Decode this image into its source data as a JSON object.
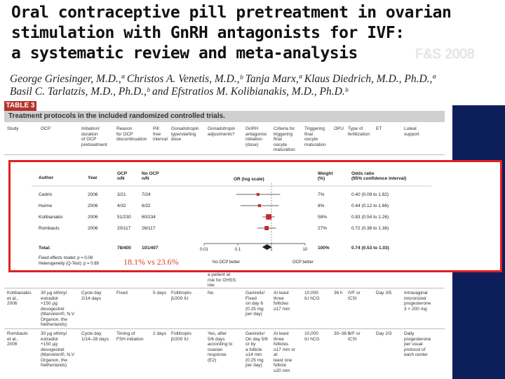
{
  "title_lines": [
    "Oral contraceptive pill pretreatment in ovarian",
    "stimulation with GnRH antagonists for IVF:",
    "a systematic review and meta-analysis"
  ],
  "journal": "F&S 2008",
  "authors_lines": [
    "George Griesinger, M.D.,ª Christos A. Venetis, M.D.,ᵇ Tanja Marx,ª Klaus Diedrich, M.D., Ph.D.,ª",
    "Basil C. Tarlatzis, M.D., Ph.D.,ᵇ and Efstratios M. Kolibianakis, M.D., Ph.D.ᵇ"
  ],
  "table": {
    "label": "TABLE 3",
    "caption": "Treatment protocols in the included randomized controlled trials.",
    "headers": [
      "Study",
      "OCP",
      "Initiation/\nduration\nof OCP\npretreatment",
      "Reason\nfor OCP\ndiscontinuation",
      "Pill\nfree\ninterval",
      "Gonadotropin\ntype/starting\ndose",
      "Gonadotropin\nadjustments?",
      "GnRH\nantagonist\ninitiation\n(dose)",
      "Criteria for\ntriggering\nfinal\noocyte\nmaturation",
      "Triggering\nfinal\noocyte\nmaturation",
      "OPU",
      "Type of\nfertilization",
      "ET",
      "Luteal\nsupport"
    ],
    "partial_row_text": "a patient at\nrisk for OHSS:\nlow",
    "rows": [
      {
        "study": "Kolibianakis\net al.,\n2006",
        "ocp": "30 µg ethinyl\nestradiol\n+150 µg\ndesogestrel\n(Marvelon®, N.V\nOrganon, the\nNetherlands)",
        "initiation": "Cycle day\n2/14 days",
        "reason": "Fixed",
        "pill_free": "5 days",
        "gonadotropin": "Follitropin-\nβ/200 IU",
        "adjust": "No",
        "antagonist": "Ganirelix/\nFixed\non day 6\n(0.25 mg\nper day)",
        "criteria": "At least\nthree\nfollicles\n≥17 mm",
        "trigger": "10,000\nIU hCG",
        "opu": "36 h",
        "fert": "IVF or\nICSI",
        "et": "Day 3/5",
        "luteal": "Intravaginal\nmicronized\nprogesterone\n3 × 200 mg"
      },
      {
        "study": "Rombauts\net al.,\n2006",
        "ocp": "30 µg ethinyl\nestradiol\n+150 µg\ndesogestrel\n(Marvelon®, N.V\nOrganon, the\nNetherlands)",
        "initiation": "Cycle day\n1/14–28 days",
        "reason": "Timing of\nFSH initiation",
        "pill_free": "2 days",
        "gonadotropin": "Follitropin-\nβ/200 IU",
        "adjust": "Yes, after\n5/6 days\naccording to\novarian\nresponse\n(E2)",
        "antagonist": "Ganirelix/\nOn day 5/6\nor by\na follicle\n≥14 mm\n(0.25 mg\nper day)",
        "criteria": "At least\nthree\nfollicles\n≥17 mm or\nat\nleast one\nfollicle\n≥20 mm",
        "trigger": "10,000\nIU hCG",
        "opu": "30–36 h",
        "fert": "IVF or\nICSI",
        "et": "Day 2/3",
        "luteal": "Daily\nprogesterone\nper usual\nprotocol of\neach center"
      }
    ]
  },
  "forest": {
    "headers": {
      "author": "Author",
      "year": "Year",
      "ocp": "OCP\nn/N",
      "no_ocp": "No OCP\nn/N",
      "plot": "OR (log scale)",
      "weight": "Weight\n(%)",
      "or": "Odds ratio\n(95% confidence interval)"
    },
    "studies": [
      {
        "author": "Cedrin",
        "year": "2006",
        "ocp": "3/21",
        "no_ocp": "7/24",
        "weight": "7%",
        "or_text": "0.40 (0.09 to 1.82)"
      },
      {
        "author": "Huirne",
        "year": "2006",
        "ocp": "4/32",
        "no_ocp": "8/32",
        "weight": "8%",
        "or_text": "0.44 (0.12 to 1.66)"
      },
      {
        "author": "Kolibianakis",
        "year": "2006",
        "ocp": "51/230",
        "no_ocp": "60/234",
        "weight": "58%",
        "or_text": "0.83 (0.54 to 1.26)"
      },
      {
        "author": "Rombauts",
        "year": "2006",
        "ocp": "20/117",
        "no_ocp": "26/117",
        "weight": "27%",
        "or_text": "0.72 (0.38 to 1.38)"
      }
    ],
    "total": {
      "label": "Total:",
      "ocp": "78/400",
      "no_ocp": "101/407",
      "weight": "100%",
      "or_text": "0.74 (0.53 to 1.03)"
    },
    "footnotes": [
      "Fixed effects model: p = 0.08",
      "Heterogeneity (Q-Test): p = 0.69"
    ],
    "axis_ticks": [
      "0.01",
      "0.1",
      "1",
      "10"
    ],
    "favors_left": "No OCP better",
    "favors_right": "OCP better"
  },
  "chart_data": {
    "type": "forest",
    "title": "OR (log scale)",
    "xscale": "log",
    "xlim": [
      0.01,
      10
    ],
    "categories": [
      "Cedrin 2006",
      "Huirne 2006",
      "Kolibianakis 2006",
      "Rombauts 2006",
      "Total"
    ],
    "series": [
      {
        "name": "odds_ratio",
        "values": [
          0.4,
          0.44,
          0.83,
          0.72,
          0.74
        ]
      },
      {
        "name": "ci_low",
        "values": [
          0.09,
          0.12,
          0.54,
          0.38,
          0.53
        ]
      },
      {
        "name": "ci_high",
        "values": [
          1.82,
          1.66,
          1.26,
          1.38,
          1.03
        ]
      },
      {
        "name": "weight_pct",
        "values": [
          7,
          8,
          58,
          27,
          100
        ]
      }
    ]
  },
  "annotation": "18.1% vs 23.6%"
}
